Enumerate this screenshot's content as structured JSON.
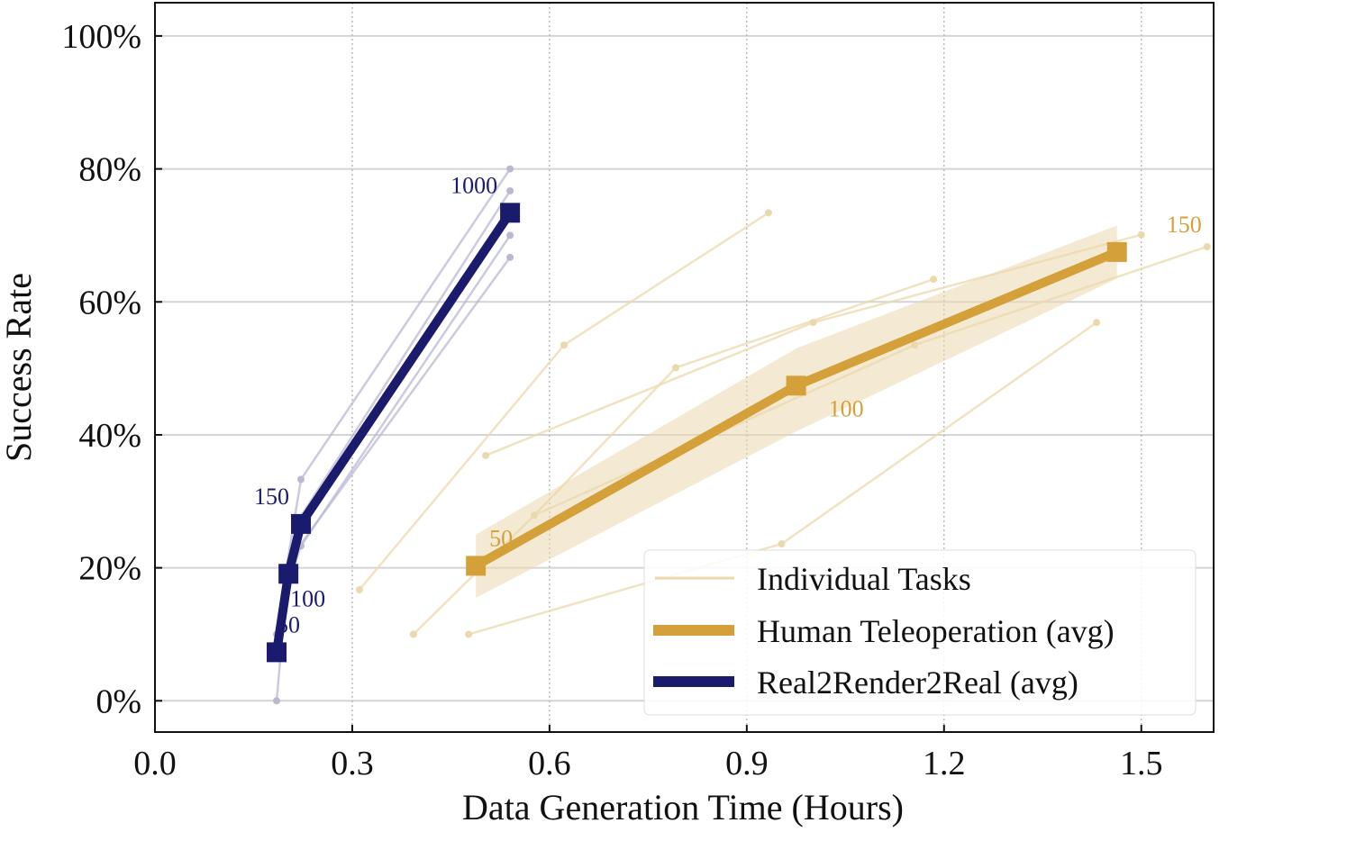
{
  "chart_data": {
    "type": "line",
    "title": "",
    "xlabel": "Data Generation Time (Hours)",
    "ylabel": "Success Rate",
    "xlim": [
      0,
      1.61
    ],
    "ylim": [
      -4.7,
      105
    ],
    "xticks": [
      0.0,
      0.3,
      0.6,
      0.9,
      1.2,
      1.5
    ],
    "xtick_labels": [
      "0.0",
      "0.3",
      "0.6",
      "0.9",
      "1.2",
      "1.5"
    ],
    "yticks": [
      0,
      20,
      40,
      60,
      80,
      100
    ],
    "ytick_labels": [
      "0%",
      "20%",
      "40%",
      "60%",
      "80%",
      "100%"
    ],
    "grid": true,
    "legend_position": "bottom-right",
    "legend": [
      "Individual Tasks",
      "Human Teleoperation (avg)",
      "Real2Render2Real (avg)"
    ],
    "colors": {
      "human": "#D4A03A",
      "r2r2r": "#1B1B6E",
      "human_light": "#EBD9AE",
      "r2r2r_light": "#B9B9D2"
    },
    "series": [
      {
        "name": "Human Teleoperation (avg)",
        "x": [
          0.488,
          0.975,
          1.463
        ],
        "y": [
          20.3,
          47.4,
          67.5
        ],
        "point_labels": [
          "50",
          "100",
          "150"
        ],
        "band_low": [
          15.5,
          40.5,
          63.5
        ],
        "band_high": [
          25.0,
          53.0,
          71.5
        ]
      },
      {
        "name": "Real2Render2Real (avg)",
        "x": [
          0.185,
          0.203,
          0.222,
          0.54
        ],
        "y": [
          7.3,
          19.1,
          26.6,
          73.4
        ],
        "point_labels": [
          "50",
          "100",
          "150",
          "1000"
        ]
      }
    ],
    "individual_tasks": {
      "human": [
        {
          "x": [
            0.311,
            0.622,
            0.933
          ],
          "y": [
            16.7,
            53.5,
            73.4
          ]
        },
        {
          "x": [
            0.503,
            1.001,
            1.5
          ],
          "y": [
            36.9,
            56.9,
            70.1
          ]
        },
        {
          "x": [
            0.393,
            0.577,
            1.155,
            1.6
          ],
          "y": [
            10.0,
            27.9,
            53.5,
            68.3
          ]
        },
        {
          "x": [
            0.477,
            0.953,
            1.432
          ],
          "y": [
            10.0,
            23.6,
            56.9
          ]
        },
        {
          "x": [
            0.577,
            0.792,
            1.184
          ],
          "y": [
            27.9,
            50.1,
            63.4
          ]
        }
      ],
      "r2r2r": [
        {
          "x": [
            0.185,
            0.2,
            0.22,
            0.54
          ],
          "y": [
            0.0,
            16.7,
            23.3,
            66.7
          ]
        },
        {
          "x": [
            0.19,
            0.205,
            0.22,
            0.54
          ],
          "y": [
            6.7,
            20.0,
            26.7,
            73.3
          ]
        },
        {
          "x": [
            0.19,
            0.2,
            0.222,
            0.54
          ],
          "y": [
            10.0,
            20.0,
            33.3,
            80.0
          ]
        },
        {
          "x": [
            0.185,
            0.205,
            0.215,
            0.54
          ],
          "y": [
            6.7,
            20.0,
            26.7,
            76.7
          ]
        },
        {
          "x": [
            0.185,
            0.2,
            0.222,
            0.54
          ],
          "y": [
            10.0,
            16.7,
            23.3,
            70.0
          ]
        }
      ]
    }
  }
}
